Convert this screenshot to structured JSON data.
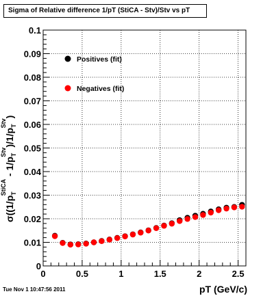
{
  "chart_data": {
    "type": "scatter",
    "title": "Sigma of Relative difference 1/pT (StiCA - Stv)/Stv vs pT",
    "xlabel": "pT (GeV/c)",
    "ylabel": {
      "parts": [
        {
          "t": "σ((1/p",
          "s": "base"
        },
        {
          "t": "T",
          "s": "sub"
        },
        {
          "t": "StiCA",
          "s": "sup"
        },
        {
          "t": " - 1/p",
          "s": "base"
        },
        {
          "t": "T",
          "s": "sub"
        },
        {
          "t": "Stv",
          "s": "sup"
        },
        {
          "t": ")/1/p",
          "s": "base"
        },
        {
          "t": "T",
          "s": "sub"
        },
        {
          "t": "Stv",
          "s": "sup"
        },
        {
          "t": ")",
          "s": "base"
        }
      ]
    },
    "xlim": [
      0,
      2.6
    ],
    "ylim": [
      0,
      0.1
    ],
    "xticks": [
      0,
      0.5,
      1,
      1.5,
      2,
      2.5
    ],
    "xtick_labels": [
      "0",
      "0.5",
      "1",
      "1.5",
      "2",
      "2.5"
    ],
    "yticks": [
      0,
      0.01,
      0.02,
      0.03,
      0.04,
      0.05,
      0.06,
      0.07,
      0.08,
      0.09,
      0.1
    ],
    "ytick_labels": [
      "0",
      "0.01",
      "0.02",
      "0.03",
      "0.04",
      "0.05",
      "0.06",
      "0.07",
      "0.08",
      "0.09",
      "0.1"
    ],
    "grid": true,
    "legend_position": "top-left",
    "series": [
      {
        "name": "Positives (fit)",
        "color": "#000000",
        "x": [
          0.15,
          0.25,
          0.35,
          0.45,
          0.55,
          0.65,
          0.75,
          0.85,
          0.95,
          1.05,
          1.15,
          1.25,
          1.35,
          1.45,
          1.55,
          1.65,
          1.75,
          1.85,
          1.95,
          2.05,
          2.15,
          2.25,
          2.35,
          2.45,
          2.55
        ],
        "y": [
          0.0128,
          0.0098,
          0.0091,
          0.0092,
          0.0095,
          0.01,
          0.0106,
          0.0112,
          0.0119,
          0.0126,
          0.0134,
          0.0142,
          0.0151,
          0.0161,
          0.0171,
          0.0181,
          0.0194,
          0.0204,
          0.0213,
          0.0221,
          0.0231,
          0.024,
          0.0247,
          0.025,
          0.0259
        ]
      },
      {
        "name": "Negatives (fit)",
        "color": "#ff0000",
        "x": [
          0.15,
          0.25,
          0.35,
          0.45,
          0.55,
          0.65,
          0.75,
          0.85,
          0.95,
          1.05,
          1.15,
          1.25,
          1.35,
          1.45,
          1.55,
          1.65,
          1.75,
          1.85,
          1.95,
          2.05,
          2.15,
          2.25,
          2.35,
          2.45,
          2.55
        ],
        "y": [
          0.0126,
          0.0097,
          0.009,
          0.0091,
          0.0094,
          0.01,
          0.0105,
          0.0111,
          0.0118,
          0.0125,
          0.0133,
          0.0141,
          0.015,
          0.016,
          0.017,
          0.0179,
          0.019,
          0.0199,
          0.0207,
          0.0216,
          0.0226,
          0.0236,
          0.0243,
          0.0248,
          0.0251
        ]
      }
    ]
  },
  "timestamp": "Tue Nov  1 10:47:56 2011"
}
